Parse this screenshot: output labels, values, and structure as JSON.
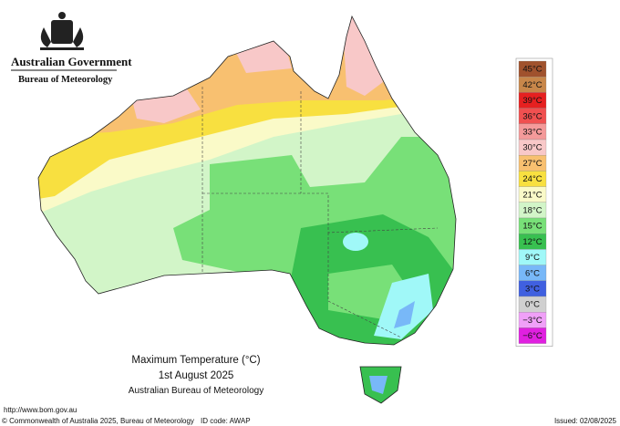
{
  "header": {
    "government": "Australian Government",
    "bureau": "Bureau of Meteorology"
  },
  "legend": [
    {
      "label": "45°C",
      "color": "#a0522d"
    },
    {
      "label": "42°C",
      "color": "#c8874a"
    },
    {
      "label": "39°C",
      "color": "#e62020"
    },
    {
      "label": "36°C",
      "color": "#f05050"
    },
    {
      "label": "33°C",
      "color": "#f49a9a"
    },
    {
      "label": "30°C",
      "color": "#f8c8c8"
    },
    {
      "label": "27°C",
      "color": "#f8c070"
    },
    {
      "label": "24°C",
      "color": "#f8e040"
    },
    {
      "label": "21°C",
      "color": "#fafac8"
    },
    {
      "label": "18°C",
      "color": "#d2f5c8"
    },
    {
      "label": "15°C",
      "color": "#78e078"
    },
    {
      "label": "12°C",
      "color": "#38c050"
    },
    {
      "label": "9°C",
      "color": "#a0f8f8"
    },
    {
      "label": "6°C",
      "color": "#78b8f8"
    },
    {
      "label": "3°C",
      "color": "#4060e0"
    },
    {
      "label": "0°C",
      "color": "#d0d0d0"
    },
    {
      "label": "−3°C",
      "color": "#f0a0f8"
    },
    {
      "label": "−6°C",
      "color": "#e020e0"
    }
  ],
  "title": {
    "line1": "Maximum Temperature (°C)",
    "line2": "1st August 2025",
    "line3": "Australian Bureau of Meteorology"
  },
  "footer": {
    "url": "http://www.bom.gov.au",
    "copyright": "© Commonwealth of Australia 2025, Bureau of Meteorology",
    "id_code": "ID code: AWAP",
    "issued": "Issued: 02/08/2025"
  }
}
